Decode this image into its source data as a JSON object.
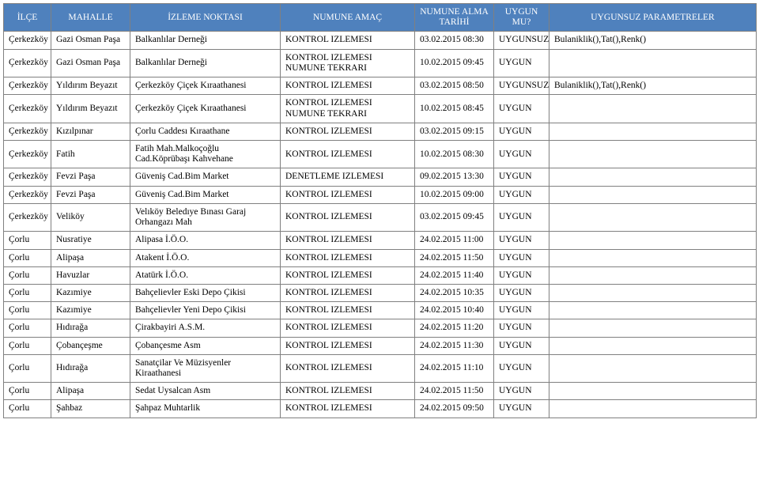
{
  "headers": [
    "İLÇE",
    "MAHALLE",
    "İZLEME NOKTASI",
    "NUMUNE AMAÇ",
    "NUMUNE ALMA TARİHİ",
    "UYGUN MU?",
    "UYGUNSUZ PARAMETRELER"
  ],
  "rows": [
    [
      "Çerkezköy",
      "Gazi Osman Paşa",
      "Balkanlılar Derneği",
      "KONTROL IZLEMESI",
      "03.02.2015 08:30",
      "UYGUNSUZ",
      "Bulaniklik(),Tat(),Renk()"
    ],
    [
      "Çerkezköy",
      "Gazi Osman Paşa",
      "Balkanlılar Derneği",
      "KONTROL IZLEMESI NUMUNE TEKRARI",
      "10.02.2015 09:45",
      "UYGUN",
      ""
    ],
    [
      "Çerkezköy",
      "Yıldırım Beyazıt",
      "Çerkezköy Çiçek Kıraathanesi",
      "KONTROL IZLEMESI",
      "03.02.2015 08:50",
      "UYGUNSUZ",
      "Bulaniklik(),Tat(),Renk()"
    ],
    [
      "Çerkezköy",
      "Yıldırım Beyazıt",
      "Çerkezköy Çiçek Kıraathanesi",
      "KONTROL IZLEMESI NUMUNE TEKRARI",
      "10.02.2015 08:45",
      "UYGUN",
      ""
    ],
    [
      "Çerkezköy",
      "Kızılpınar",
      "Çorlu Caddesı Kıraathane",
      "KONTROL IZLEMESI",
      "03.02.2015 09:15",
      "UYGUN",
      ""
    ],
    [
      "Çerkezköy",
      "Fatih",
      "Fatih Mah.Malkoçoğlu Cad.Köprübaşı Kahvehane",
      "KONTROL IZLEMESI",
      "10.02.2015 08:30",
      "UYGUN",
      ""
    ],
    [
      "Çerkezköy",
      "Fevzi Paşa",
      "Güveniş Cad.Bim Market",
      "DENETLEME IZLEMESI",
      "09.02.2015 13:30",
      "UYGUN",
      ""
    ],
    [
      "Çerkezköy",
      "Fevzi Paşa",
      "Güveniş Cad.Bim Market",
      "KONTROL IZLEMESI",
      "10.02.2015 09:00",
      "UYGUN",
      ""
    ],
    [
      "Çerkezköy",
      "Veliköy",
      "Velıköy Beledıye Bınası Garaj Orhangazı Mah",
      "KONTROL IZLEMESI",
      "03.02.2015 09:45",
      "UYGUN",
      ""
    ],
    [
      "Çorlu",
      "Nusratiye",
      "Alipasa İ.Ö.O.",
      "KONTROL IZLEMESI",
      "24.02.2015 11:00",
      "UYGUN",
      ""
    ],
    [
      "Çorlu",
      "Alipaşa",
      "Atakent İ.Ö.O.",
      "KONTROL IZLEMESI",
      "24.02.2015 11:50",
      "UYGUN",
      ""
    ],
    [
      "Çorlu",
      "Havuzlar",
      "Atatürk İ.Ö.O.",
      "KONTROL IZLEMESI",
      "24.02.2015 11:40",
      "UYGUN",
      ""
    ],
    [
      "Çorlu",
      "Kazımiye",
      "Bahçelievler Eski Depo Çikisi",
      "KONTROL IZLEMESI",
      "24.02.2015 10:35",
      "UYGUN",
      ""
    ],
    [
      "Çorlu",
      "Kazımiye",
      "Bahçelievler Yeni Depo Çikisi",
      "KONTROL IZLEMESI",
      "24.02.2015 10:40",
      "UYGUN",
      ""
    ],
    [
      "Çorlu",
      "Hıdırağa",
      "Çirakbayiri A.S.M.",
      "KONTROL IZLEMESI",
      "24.02.2015 11:20",
      "UYGUN",
      ""
    ],
    [
      "Çorlu",
      "Çobançeşme",
      "Çobançesme Asm",
      "KONTROL IZLEMESI",
      "24.02.2015 11:30",
      "UYGUN",
      ""
    ],
    [
      "Çorlu",
      "Hıdırağa",
      "Sanatçilar Ve Müzisyenler Kiraathanesi",
      "KONTROL IZLEMESI",
      "24.02.2015 11:10",
      "UYGUN",
      ""
    ],
    [
      "Çorlu",
      "Alipaşa",
      "Sedat Uysalcan Asm",
      "KONTROL IZLEMESI",
      "24.02.2015 11:50",
      "UYGUN",
      ""
    ],
    [
      "Çorlu",
      "Şahbaz",
      "Şahpaz Muhtarlik",
      "KONTROL IZLEMESI",
      "24.02.2015 09:50",
      "UYGUN",
      ""
    ]
  ],
  "colors": {
    "header_bg": "#4f81bd",
    "header_fg": "#ffffff",
    "border": "#808080"
  }
}
